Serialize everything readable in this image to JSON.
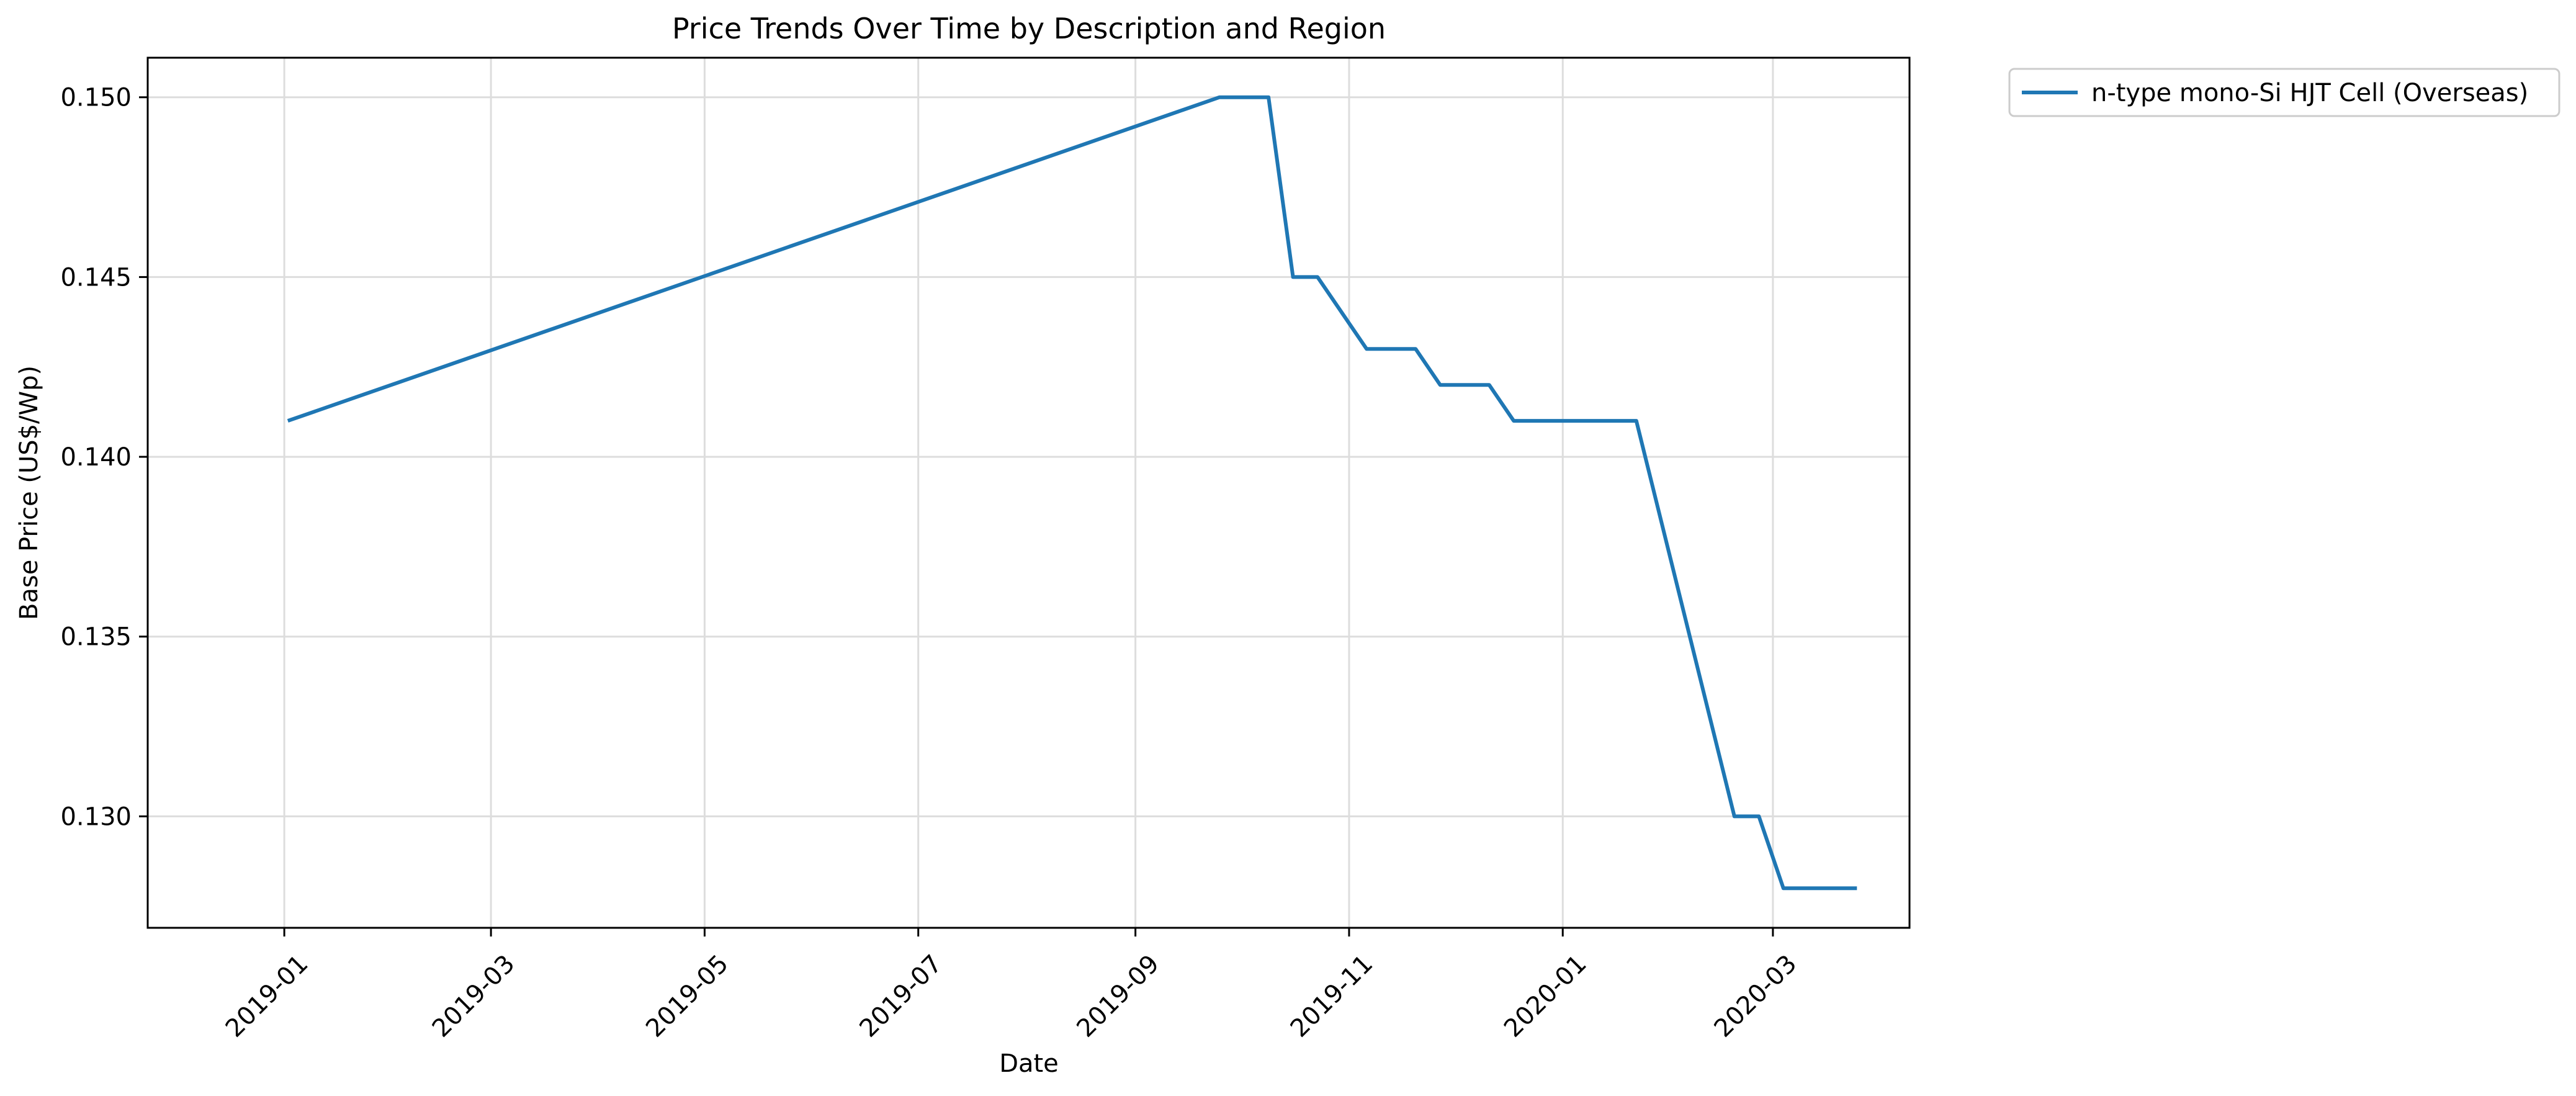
{
  "chart_data": {
    "type": "line",
    "title": "Price Trends Over Time by Description and Region",
    "xlabel": "Date",
    "ylabel": "Base Price (US$/Wp)",
    "xlim": [
      "2018-11-23",
      "2020-04-09"
    ],
    "ylim": [
      0.1269,
      0.1511
    ],
    "x_ticks": [
      "2019-01",
      "2019-03",
      "2019-05",
      "2019-07",
      "2019-09",
      "2019-11",
      "2020-01",
      "2020-03"
    ],
    "y_ticks": [
      0.13,
      0.135,
      0.14,
      0.145,
      0.15
    ],
    "y_tick_labels": [
      "0.130",
      "0.135",
      "0.140",
      "0.145",
      "0.150"
    ],
    "grid": true,
    "legend_position": "outside-upper-right",
    "series": [
      {
        "name": "n-type mono-Si HJT Cell (Overseas)",
        "color": "#1f77b4",
        "points": [
          {
            "x": "2019-01-02",
            "y": 0.141
          },
          {
            "x": "2019-09-25",
            "y": 0.15
          },
          {
            "x": "2019-10-09",
            "y": 0.15
          },
          {
            "x": "2019-10-16",
            "y": 0.145
          },
          {
            "x": "2019-10-23",
            "y": 0.145
          },
          {
            "x": "2019-11-06",
            "y": 0.143
          },
          {
            "x": "2019-11-20",
            "y": 0.143
          },
          {
            "x": "2019-11-27",
            "y": 0.142
          },
          {
            "x": "2019-12-11",
            "y": 0.142
          },
          {
            "x": "2019-12-18",
            "y": 0.141
          },
          {
            "x": "2020-01-22",
            "y": 0.141
          },
          {
            "x": "2020-02-19",
            "y": 0.13
          },
          {
            "x": "2020-02-26",
            "y": 0.13
          },
          {
            "x": "2020-03-04",
            "y": 0.128
          },
          {
            "x": "2020-03-25",
            "y": 0.128
          }
        ]
      }
    ]
  }
}
